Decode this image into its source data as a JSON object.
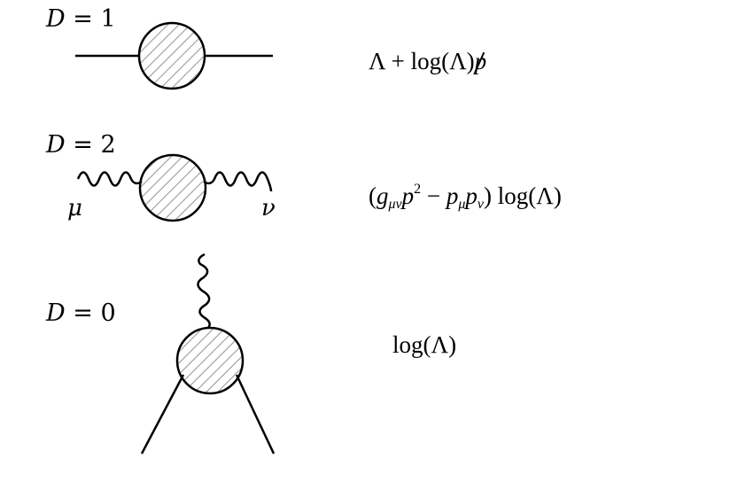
{
  "diagrams": [
    {
      "label_prefix": "D",
      "label_eq": "=",
      "label_value": "1",
      "formula": "Λ + log(Λ)p/"
    },
    {
      "label_prefix": "D",
      "label_eq": "=",
      "label_value": "2",
      "formula": "(gμνp² − pμpν) log(Λ)",
      "index_left": "μ",
      "index_right": "ν"
    },
    {
      "label_prefix": "D",
      "label_eq": "=",
      "label_value": "0",
      "formula": "log(Λ)"
    }
  ],
  "colors": {
    "stroke": "#000000",
    "hatch": "#9a9a9a",
    "blob_fill": "#ffffff"
  }
}
